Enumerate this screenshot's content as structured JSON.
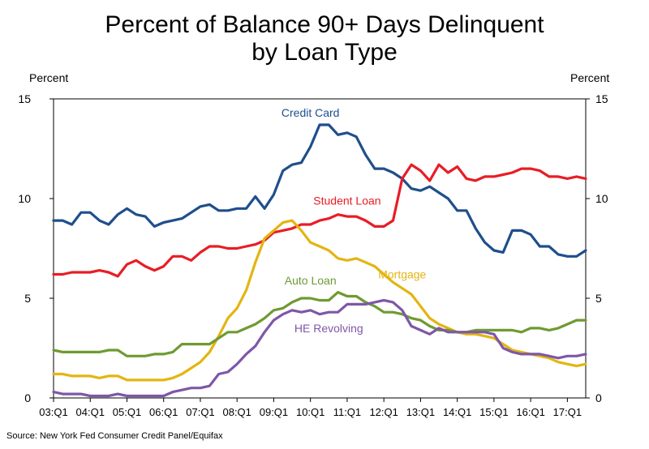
{
  "chart_data": {
    "type": "line",
    "title_line1": "Percent of Balance 90+ Days Delinquent",
    "title_line2": "by Loan Type",
    "ylabel_left": "Percent",
    "ylabel_right": "Percent",
    "source": "Source: New York Fed Consumer Credit Panel/Equifax",
    "ylim": [
      0,
      15
    ],
    "yticks": [
      0,
      5,
      10,
      15
    ],
    "x_start_quarter": "03:Q1",
    "x_end_quarter": "17:Q2",
    "xtick_labels": [
      "03:Q1",
      "04:Q1",
      "05:Q1",
      "06:Q1",
      "07:Q1",
      "08:Q1",
      "09:Q1",
      "10:Q1",
      "11:Q1",
      "12:Q1",
      "13:Q1",
      "14:Q1",
      "15:Q1",
      "16:Q1",
      "17:Q1"
    ],
    "grid": false,
    "legend": "inline labels",
    "series": [
      {
        "name": "Credit Card",
        "color": "#1f4e8c",
        "label_at": "10:Q1",
        "label_value": 14.1,
        "values": [
          8.9,
          8.9,
          8.7,
          9.3,
          9.3,
          8.9,
          8.7,
          9.2,
          9.5,
          9.2,
          9.1,
          8.6,
          8.8,
          8.9,
          9.0,
          9.3,
          9.6,
          9.7,
          9.4,
          9.4,
          9.5,
          9.5,
          10.1,
          9.5,
          10.2,
          11.4,
          11.7,
          11.8,
          12.6,
          13.7,
          13.7,
          13.2,
          13.3,
          13.1,
          12.2,
          11.5,
          11.5,
          11.3,
          11.0,
          10.5,
          10.4,
          10.6,
          10.3,
          10.0,
          9.4,
          9.4,
          8.5,
          7.8,
          7.4,
          7.3,
          8.4,
          8.4,
          8.2,
          7.6,
          7.6,
          7.2,
          7.1,
          7.1,
          7.4
        ]
      },
      {
        "name": "Student Loan",
        "color": "#e81d25",
        "label_at": "11:Q1",
        "label_value": 9.7,
        "values": [
          6.2,
          6.2,
          6.3,
          6.3,
          6.3,
          6.4,
          6.3,
          6.1,
          6.7,
          6.9,
          6.6,
          6.4,
          6.6,
          7.1,
          7.1,
          6.9,
          7.3,
          7.6,
          7.6,
          7.5,
          7.5,
          7.6,
          7.7,
          7.9,
          8.3,
          8.4,
          8.5,
          8.7,
          8.7,
          8.9,
          9.0,
          9.2,
          9.1,
          9.1,
          8.9,
          8.6,
          8.6,
          8.9,
          11.0,
          11.7,
          11.4,
          10.9,
          11.7,
          11.3,
          11.6,
          11.0,
          10.9,
          11.1,
          11.1,
          11.2,
          11.3,
          11.5,
          11.5,
          11.4,
          11.1,
          11.1,
          11.0,
          11.1,
          11.0
        ]
      },
      {
        "name": "Mortgage",
        "color": "#e3b512",
        "label_at": "12:Q3",
        "label_value": 6.0,
        "values": [
          1.2,
          1.2,
          1.1,
          1.1,
          1.1,
          1.0,
          1.1,
          1.1,
          0.9,
          0.9,
          0.9,
          0.9,
          0.9,
          1.0,
          1.2,
          1.5,
          1.8,
          2.3,
          3.1,
          4.0,
          4.5,
          5.4,
          6.8,
          8.0,
          8.4,
          8.8,
          8.9,
          8.4,
          7.8,
          7.6,
          7.4,
          7.0,
          6.9,
          7.0,
          6.8,
          6.6,
          6.2,
          5.8,
          5.5,
          5.2,
          4.6,
          4.0,
          3.7,
          3.5,
          3.3,
          3.2,
          3.2,
          3.1,
          3.0,
          2.7,
          2.4,
          2.3,
          2.2,
          2.1,
          2.0,
          1.8,
          1.7,
          1.6,
          1.7
        ]
      },
      {
        "name": "Auto Loan",
        "color": "#6f9a32",
        "label_at": "10:Q1",
        "label_value": 5.7,
        "values": [
          2.4,
          2.3,
          2.3,
          2.3,
          2.3,
          2.3,
          2.4,
          2.4,
          2.1,
          2.1,
          2.1,
          2.2,
          2.2,
          2.3,
          2.7,
          2.7,
          2.7,
          2.7,
          3.0,
          3.3,
          3.3,
          3.5,
          3.7,
          4.0,
          4.4,
          4.5,
          4.8,
          5.0,
          5.0,
          4.9,
          4.9,
          5.3,
          5.1,
          5.1,
          4.8,
          4.6,
          4.3,
          4.3,
          4.2,
          4.0,
          3.9,
          3.6,
          3.4,
          3.4,
          3.3,
          3.3,
          3.4,
          3.4,
          3.4,
          3.4,
          3.4,
          3.3,
          3.5,
          3.5,
          3.4,
          3.5,
          3.7,
          3.9,
          3.9
        ]
      },
      {
        "name": "HE Revolving",
        "color": "#7e57a7",
        "label_at": "10:Q3",
        "label_value": 3.3,
        "values": [
          0.3,
          0.2,
          0.2,
          0.2,
          0.1,
          0.1,
          0.1,
          0.2,
          0.1,
          0.1,
          0.1,
          0.1,
          0.1,
          0.3,
          0.4,
          0.5,
          0.5,
          0.6,
          1.2,
          1.3,
          1.7,
          2.2,
          2.6,
          3.3,
          3.9,
          4.2,
          4.4,
          4.3,
          4.4,
          4.2,
          4.3,
          4.3,
          4.7,
          4.7,
          4.7,
          4.8,
          4.9,
          4.8,
          4.4,
          3.6,
          3.4,
          3.2,
          3.5,
          3.3,
          3.3,
          3.3,
          3.3,
          3.3,
          3.2,
          2.5,
          2.3,
          2.2,
          2.2,
          2.2,
          2.1,
          2.0,
          2.1,
          2.1,
          2.2
        ]
      }
    ]
  }
}
